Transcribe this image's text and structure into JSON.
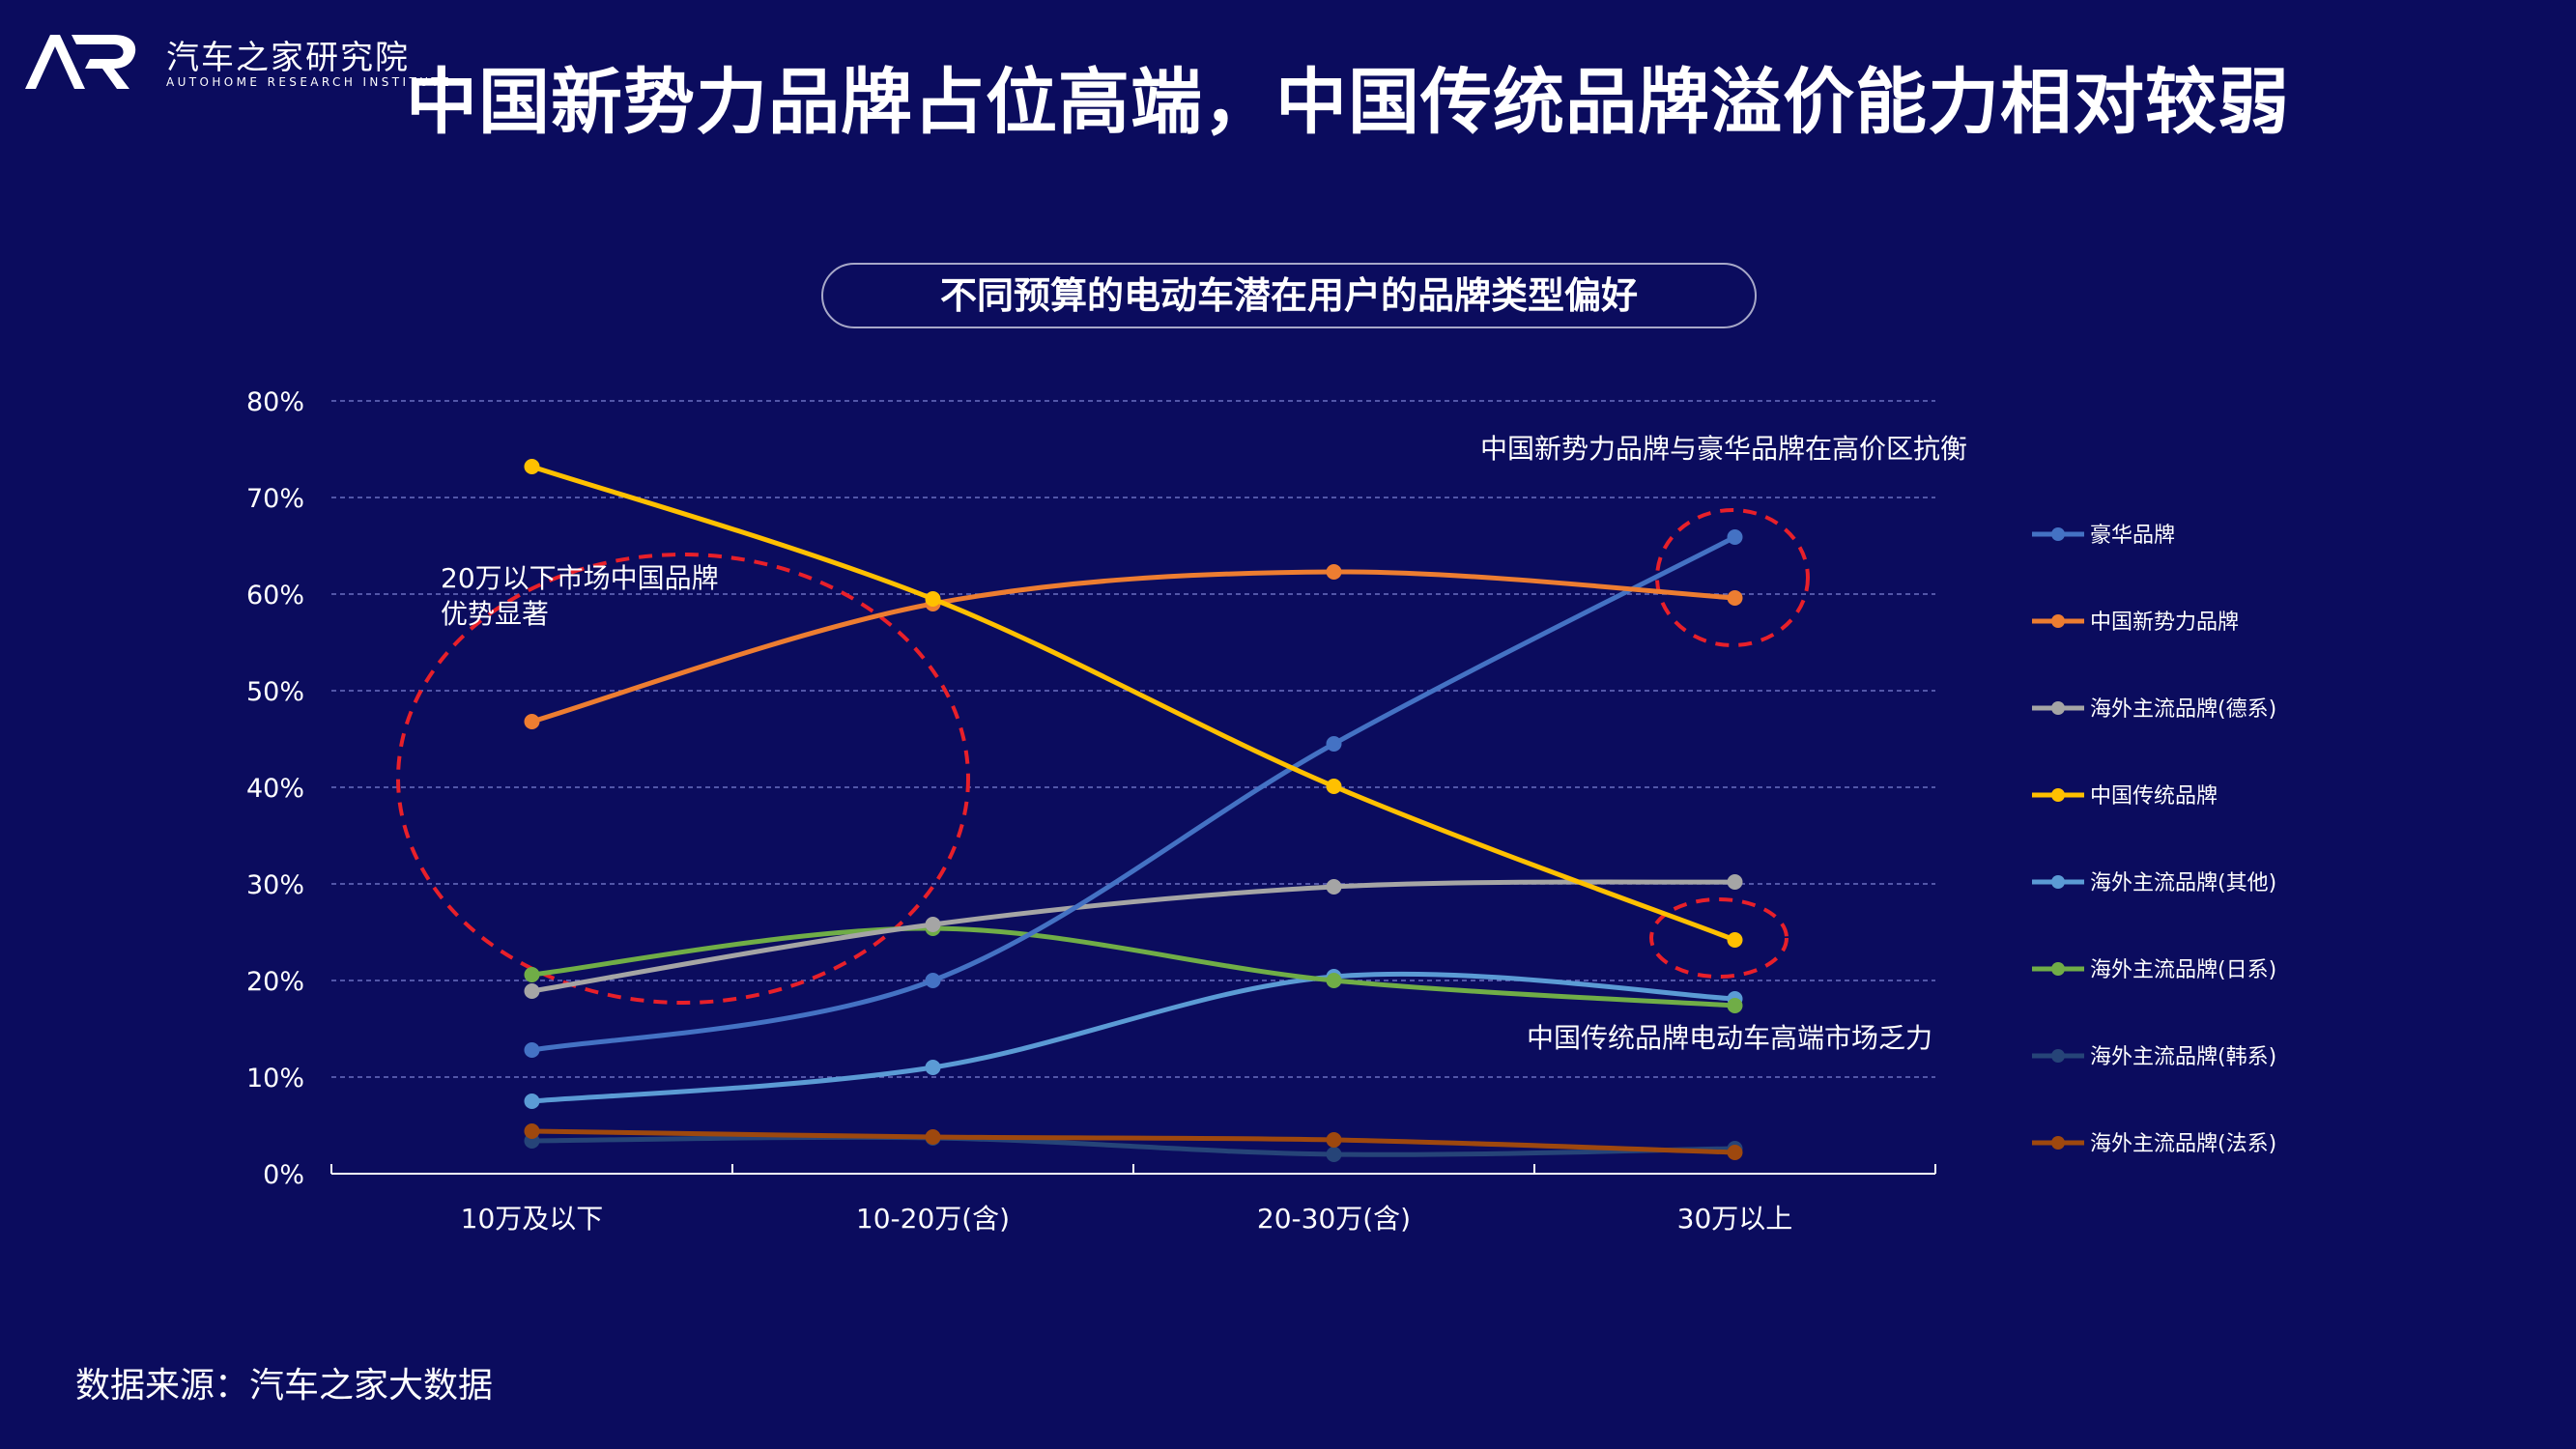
{
  "header": {
    "logo_cn": "汽车之家研究院",
    "logo_en": "AUTOHOME RESEARCH INSTITUTE",
    "title": "中国新势力品牌占位高端，中国传统品牌溢价能力相对较弱"
  },
  "footer": {
    "source": "数据来源：汽车之家大数据"
  },
  "chart_data": {
    "type": "line",
    "title": "不同预算的电动车潜在用户的品牌类型偏好",
    "xlabel": "",
    "ylabel": "",
    "categories": [
      "10万及以下",
      "10-20万(含)",
      "20-30万(含)",
      "30万以上"
    ],
    "ylim": [
      0,
      80
    ],
    "yticks": [
      "0%",
      "10%",
      "20%",
      "30%",
      "40%",
      "50%",
      "60%",
      "70%",
      "80%"
    ],
    "grid": true,
    "legend_position": "right",
    "series": [
      {
        "name": "豪华品牌",
        "color": "#4472c4",
        "values": [
          12.8,
          20.0,
          44.5,
          65.9
        ]
      },
      {
        "name": "中国新势力品牌",
        "color": "#ed7d31",
        "values": [
          46.8,
          59.0,
          62.3,
          59.6
        ]
      },
      {
        "name": "海外主流品牌(德系)",
        "color": "#a5a5a5",
        "values": [
          18.9,
          25.8,
          29.7,
          30.2
        ]
      },
      {
        "name": "中国传统品牌",
        "color": "#ffc000",
        "values": [
          73.2,
          59.5,
          40.1,
          24.2
        ]
      },
      {
        "name": "海外主流品牌(其他)",
        "color": "#5b9bd5",
        "values": [
          7.5,
          11.0,
          20.4,
          18.1
        ]
      },
      {
        "name": "海外主流品牌(日系)",
        "color": "#70ad47",
        "values": [
          20.6,
          25.4,
          20.0,
          17.4
        ]
      },
      {
        "name": "海外主流品牌(韩系)",
        "color": "#264478",
        "values": [
          3.4,
          3.7,
          2.0,
          2.6
        ]
      },
      {
        "name": "海外主流品牌(法系)",
        "color": "#9e480e",
        "values": [
          4.4,
          3.8,
          3.5,
          2.2
        ]
      }
    ],
    "annotations": [
      "20万以下市场中国品牌优势显著",
      "中国新势力品牌与豪华品牌在高价区抗衡",
      "中国传统品牌电动车高端市场乏力"
    ]
  }
}
